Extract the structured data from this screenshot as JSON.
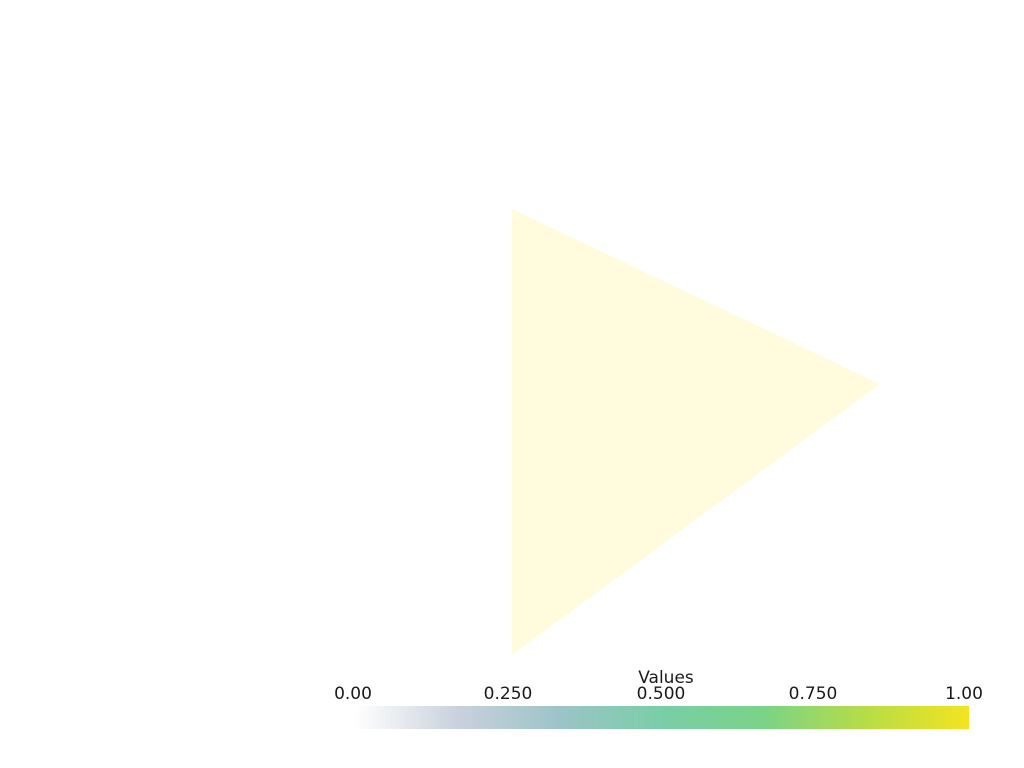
{
  "scalar_bar": {
    "title": "Values",
    "range": [
      0.0,
      1.0
    ],
    "ticks": [
      {
        "value": 0.0,
        "label": "0.00"
      },
      {
        "value": 0.25,
        "label": "0.250"
      },
      {
        "value": 0.5,
        "label": "0.500"
      },
      {
        "value": 0.75,
        "label": "0.750"
      },
      {
        "value": 1.0,
        "label": "1.00"
      }
    ],
    "colormap": [
      "#ffffff",
      "#c9d1dd",
      "#9cc4c8",
      "#79cea7",
      "#7bd387",
      "#b7dd46",
      "#f3e420"
    ]
  },
  "mesh": {
    "shape": "triangle",
    "fill_color": "#fffbdc"
  }
}
